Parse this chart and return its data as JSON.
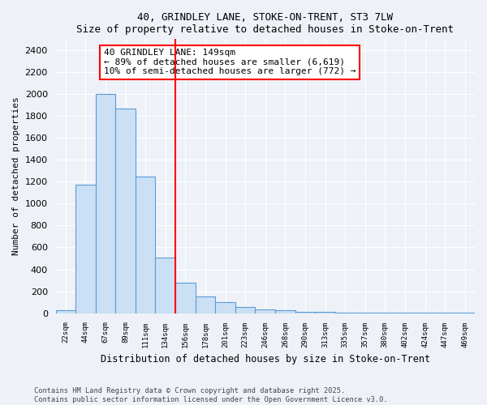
{
  "title1": "40, GRINDLEY LANE, STOKE-ON-TRENT, ST3 7LW",
  "title2": "Size of property relative to detached houses in Stoke-on-Trent",
  "xlabel": "Distribution of detached houses by size in Stoke-on-Trent",
  "ylabel": "Number of detached properties",
  "bins": [
    "22sqm",
    "44sqm",
    "67sqm",
    "89sqm",
    "111sqm",
    "134sqm",
    "156sqm",
    "178sqm",
    "201sqm",
    "223sqm",
    "246sqm",
    "268sqm",
    "290sqm",
    "313sqm",
    "335sqm",
    "357sqm",
    "380sqm",
    "402sqm",
    "424sqm",
    "447sqm",
    "469sqm"
  ],
  "values": [
    25,
    1170,
    2000,
    1870,
    1250,
    510,
    280,
    155,
    100,
    55,
    35,
    25,
    15,
    10,
    8,
    5,
    5,
    3,
    2,
    2,
    2
  ],
  "bar_color": "#cce0f5",
  "bar_edge_color": "#5b9bd5",
  "property_line_x": 5.5,
  "annotation_line1": "40 GRINDLEY LANE: 149sqm",
  "annotation_line2": "← 89% of detached houses are smaller (6,619)",
  "annotation_line3": "10% of semi-detached houses are larger (772) →",
  "annotation_box_color": "white",
  "annotation_box_edge": "red",
  "red_line_color": "red",
  "background_color": "#eef2f8",
  "grid_color": "#ffffff",
  "footer1": "Contains HM Land Registry data © Crown copyright and database right 2025.",
  "footer2": "Contains public sector information licensed under the Open Government Licence v3.0.",
  "ylim_max": 2500,
  "ytick_max": 2400,
  "ytick_step": 200
}
